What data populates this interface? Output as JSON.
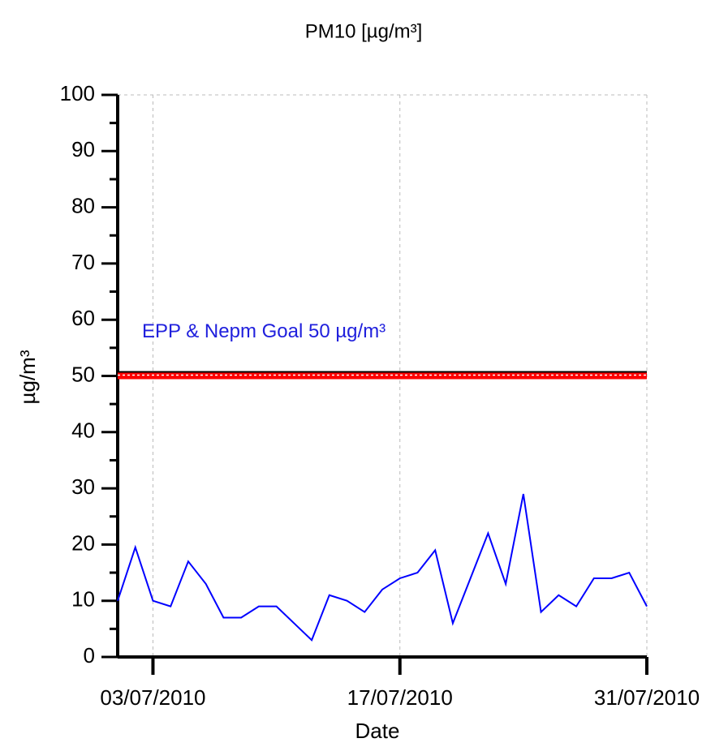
{
  "chart_data": {
    "type": "line",
    "title": "PM10 [µg/m³]",
    "x_label": "Date",
    "y_label": "µg/m³",
    "x": [
      "01/07/2010",
      "02/07/2010",
      "03/07/2010",
      "04/07/2010",
      "05/07/2010",
      "06/07/2010",
      "07/07/2010",
      "08/07/2010",
      "09/07/2010",
      "10/07/2010",
      "11/07/2010",
      "12/07/2010",
      "13/07/2010",
      "14/07/2010",
      "15/07/2010",
      "16/07/2010",
      "17/07/2010",
      "18/07/2010",
      "19/07/2010",
      "20/07/2010",
      "21/07/2010",
      "22/07/2010",
      "23/07/2010",
      "24/07/2010",
      "25/07/2010",
      "26/07/2010",
      "27/07/2010",
      "28/07/2010",
      "29/07/2010",
      "30/07/2010",
      "31/07/2010"
    ],
    "series": [
      {
        "name": "PM10",
        "color": "#0000ff",
        "values": [
          10,
          19.5,
          10,
          9,
          17,
          13,
          7,
          7,
          9,
          9,
          6,
          3,
          11,
          10,
          8,
          12,
          14,
          15,
          19,
          6,
          14,
          22,
          13,
          29,
          8,
          11,
          9,
          14,
          14,
          15,
          9
        ]
      }
    ],
    "xlim": [
      "01/07/2010",
      "31/07/2010"
    ],
    "xticks": [
      "03/07/2010",
      "17/07/2010",
      "31/07/2010"
    ],
    "ylim": [
      0,
      100
    ],
    "yticks": [
      0,
      10,
      20,
      30,
      40,
      50,
      60,
      70,
      80,
      90,
      100
    ],
    "grid": "x",
    "reference_lines": [
      {
        "value": 50,
        "label": "EPP & Nepm Goal 50 µg/m³",
        "color": "#ff0000",
        "label_color": "#2020dd"
      }
    ]
  }
}
